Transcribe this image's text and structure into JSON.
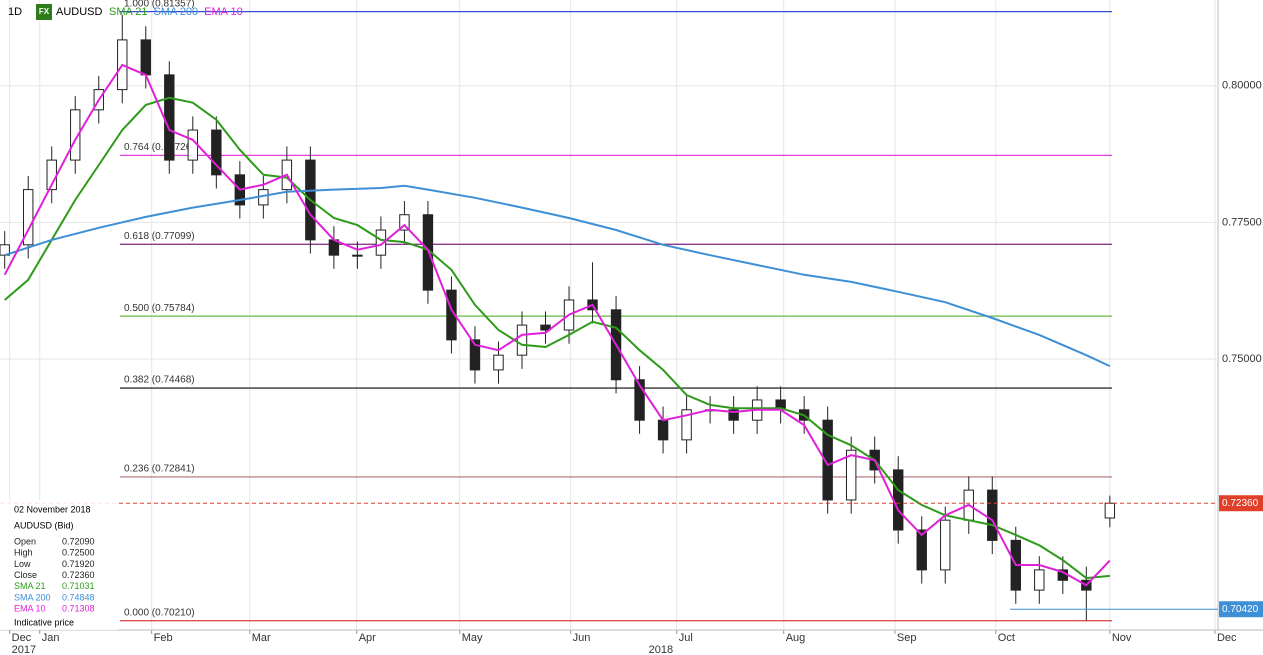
{
  "chart_data": {
    "type": "candlestick",
    "timeframe": "1D",
    "symbol": "AUDUSD",
    "symbol_badge": "FX",
    "categories": [
      null,
      null,
      null,
      null,
      null,
      null,
      null,
      null,
      null,
      null,
      null,
      null,
      null,
      null,
      null,
      null,
      null,
      null,
      null,
      null,
      null,
      null,
      null,
      null,
      null,
      null,
      null,
      null,
      null,
      null,
      null,
      null,
      null,
      null,
      null,
      null,
      null,
      null,
      null,
      null,
      null,
      null,
      null,
      null,
      null,
      null,
      null,
      null
    ],
    "open": [
      0.769,
      0.7709,
      0.781,
      0.7864,
      0.7956,
      0.7993,
      0.8084,
      0.802,
      0.7864,
      0.7919,
      0.7837,
      0.7782,
      0.781,
      0.7864,
      0.7718,
      0.769,
      0.769,
      0.7736,
      0.7764,
      0.7626,
      0.7535,
      0.748,
      0.7507,
      0.7562,
      0.7553,
      0.7608,
      0.759,
      0.7462,
      0.7388,
      0.7352,
      0.7407,
      0.7407,
      0.7388,
      0.7425,
      0.7407,
      0.7388,
      0.7242,
      0.7333,
      0.7297,
      0.7187,
      0.7114,
      0.7205,
      0.726,
      0.7168,
      0.7077,
      0.7114,
      0.7095,
      0.7209
    ],
    "high": [
      0.7734,
      0.7835,
      0.7889,
      0.7981,
      0.8018,
      0.813,
      0.8109,
      0.8045,
      0.7944,
      0.7944,
      0.7862,
      0.7835,
      0.7889,
      0.7889,
      0.7743,
      0.7715,
      0.7761,
      0.7789,
      0.7789,
      0.7651,
      0.756,
      0.7532,
      0.7587,
      0.7587,
      0.7633,
      0.7677,
      0.7615,
      0.7487,
      0.7413,
      0.7432,
      0.7432,
      0.7432,
      0.745,
      0.745,
      0.7432,
      0.7413,
      0.7358,
      0.7358,
      0.7322,
      0.7212,
      0.723,
      0.7285,
      0.7285,
      0.7193,
      0.7139,
      0.7139,
      0.712,
      0.725
    ],
    "low": [
      0.7665,
      0.7684,
      0.7785,
      0.7839,
      0.7931,
      0.7968,
      0.7995,
      0.7839,
      0.7839,
      0.7812,
      0.7757,
      0.7757,
      0.7785,
      0.7693,
      0.7665,
      0.7665,
      0.7665,
      0.7711,
      0.7601,
      0.751,
      0.7455,
      0.7455,
      0.7482,
      0.7528,
      0.7528,
      0.7565,
      0.7437,
      0.7363,
      0.7327,
      0.7327,
      0.7382,
      0.7363,
      0.7363,
      0.7382,
      0.7363,
      0.7217,
      0.7217,
      0.7272,
      0.7162,
      0.7089,
      0.7089,
      0.718,
      0.7143,
      0.7052,
      0.7052,
      0.707,
      0.7021,
      0.7192
    ],
    "close": [
      0.7709,
      0.781,
      0.7864,
      0.7956,
      0.7993,
      0.8084,
      0.802,
      0.7864,
      0.7919,
      0.7837,
      0.7782,
      0.781,
      0.7864,
      0.7718,
      0.769,
      0.769,
      0.7736,
      0.7764,
      0.7626,
      0.7535,
      0.748,
      0.7507,
      0.7562,
      0.7553,
      0.7608,
      0.759,
      0.7462,
      0.7388,
      0.7352,
      0.7407,
      0.7407,
      0.7388,
      0.7425,
      0.7407,
      0.7388,
      0.7242,
      0.7333,
      0.7297,
      0.7187,
      0.7114,
      0.7205,
      0.726,
      0.7168,
      0.7077,
      0.7114,
      0.7095,
      0.7077,
      0.7236
    ],
    "series": [
      {
        "name": "SMA 21",
        "color": "#2e9a1a",
        "x": [
          0,
          1,
          2,
          3,
          4,
          5,
          6,
          7,
          8,
          9,
          10,
          11,
          12,
          13,
          14,
          15,
          16,
          17,
          18,
          19,
          20,
          21,
          22,
          23,
          24,
          25,
          26,
          27,
          28,
          29,
          30,
          31,
          32,
          33,
          34,
          35,
          36,
          37,
          38,
          39,
          40,
          41,
          42,
          43,
          44,
          45,
          46,
          47
        ],
        "values": [
          0.7608,
          0.7645,
          0.7718,
          0.7791,
          0.7855,
          0.7919,
          0.7965,
          0.7978,
          0.7969,
          0.7938,
          0.7883,
          0.7837,
          0.7832,
          0.7791,
          0.7758,
          0.7745,
          0.7718,
          0.7714,
          0.77,
          0.7663,
          0.7599,
          0.7553,
          0.7526,
          0.7522,
          0.7544,
          0.7568,
          0.7557,
          0.7516,
          0.748,
          0.7434,
          0.7416,
          0.741,
          0.741,
          0.741,
          0.7397,
          0.7361,
          0.7342,
          0.7315,
          0.726,
          0.7233,
          0.7214,
          0.7205,
          0.7196,
          0.7178,
          0.7159,
          0.7132,
          0.7099,
          0.7103
        ]
      },
      {
        "name": "SMA 200",
        "color": "#3d8fd6",
        "x": [
          0,
          2,
          4,
          6,
          8,
          10,
          12,
          14,
          16,
          17,
          18,
          20,
          22,
          24,
          26,
          28,
          30,
          32,
          34,
          36,
          38,
          40,
          42,
          44,
          46,
          47
        ],
        "values": [
          0.769,
          0.7718,
          0.774,
          0.776,
          0.7777,
          0.7791,
          0.7806,
          0.781,
          0.7813,
          0.7817,
          0.781,
          0.7795,
          0.7777,
          0.7758,
          0.7736,
          0.7709,
          0.769,
          0.7672,
          0.7654,
          0.7641,
          0.7623,
          0.7604,
          0.7575,
          0.7544,
          0.7507,
          0.7487
        ]
      },
      {
        "name": "EMA 10",
        "color": "#e020d8",
        "x": [
          0,
          1,
          2,
          3,
          4,
          5,
          6,
          7,
          8,
          9,
          10,
          11,
          12,
          13,
          14,
          15,
          16,
          17,
          18,
          19,
          20,
          21,
          22,
          23,
          24,
          25,
          26,
          27,
          28,
          29,
          30,
          31,
          32,
          33,
          34,
          35,
          36,
          37,
          38,
          39,
          40,
          41,
          42,
          43,
          44,
          45,
          46,
          47
        ],
        "values": [
          0.7654,
          0.7736,
          0.7819,
          0.7901,
          0.7974,
          0.8038,
          0.802,
          0.7919,
          0.7901,
          0.7855,
          0.781,
          0.7819,
          0.7837,
          0.7764,
          0.7718,
          0.77,
          0.7709,
          0.7745,
          0.77,
          0.759,
          0.7526,
          0.7516,
          0.7544,
          0.7548,
          0.7581,
          0.7599,
          0.7526,
          0.7452,
          0.7388,
          0.7397,
          0.7407,
          0.7403,
          0.7407,
          0.7407,
          0.7379,
          0.7306,
          0.7324,
          0.7315,
          0.7223,
          0.7178,
          0.7214,
          0.7233,
          0.7205,
          0.7123,
          0.7123,
          0.711,
          0.7086,
          0.7131
        ]
      }
    ],
    "fib_levels": [
      {
        "label": "1.000 (0.81357)",
        "value": 0.81357,
        "color": "#3a4fd8"
      },
      {
        "label": "0.764 (0.78726)",
        "value": 0.78726,
        "color": "#e040e0"
      },
      {
        "label": "0.618 (0.77099)",
        "value": 0.77099,
        "color": "#8a3a8a"
      },
      {
        "label": "0.500 (0.75784)",
        "value": 0.75784,
        "color": "#66bb44"
      },
      {
        "label": "0.382 (0.74468)",
        "value": 0.74468,
        "color": "#333333"
      },
      {
        "label": "0.236 (0.72841)",
        "value": 0.72841,
        "color": "#c08a8a"
      },
      {
        "label": "0.000 (0.70210)",
        "value": 0.7021,
        "color": "#e05050"
      }
    ],
    "price_tags": [
      {
        "label": "0.72360",
        "value": 0.7236,
        "color": "#e0402a"
      },
      {
        "label": "0.70420",
        "value": 0.7042,
        "color": "#3d8fd6"
      }
    ],
    "xlim": [
      -0.2,
      51.6
    ],
    "ylim": [
      0.7004,
      0.8157
    ],
    "yticks": [
      {
        "value": 0.8,
        "label": "0.80000"
      },
      {
        "value": 0.775,
        "label": "0.77500"
      },
      {
        "value": 0.75,
        "label": "0.75000"
      }
    ],
    "xticks": [
      {
        "value": 0.21,
        "label": "Dec"
      },
      {
        "value": 1.49,
        "label": "Jan"
      },
      {
        "value": 6.25,
        "label": "Feb"
      },
      {
        "value": 10.42,
        "label": "Mar"
      },
      {
        "value": 14.97,
        "label": "Apr"
      },
      {
        "value": 19.35,
        "label": "May"
      },
      {
        "value": 24.07,
        "label": "Jun"
      },
      {
        "value": 28.58,
        "label": "Jul"
      },
      {
        "value": 33.13,
        "label": "Aug"
      },
      {
        "value": 37.86,
        "label": "Sep"
      },
      {
        "value": 42.15,
        "label": "Oct"
      },
      {
        "value": 47.0,
        "label": "Nov"
      },
      {
        "value": 51.47,
        "label": "Dec"
      }
    ],
    "year_labels": [
      {
        "value": 0.21,
        "label": "2017"
      },
      {
        "value": 27.3,
        "label": "2018"
      }
    ],
    "grid": true,
    "info_panel": {
      "date": "02 November 2018",
      "instrument": "AUDUSD (Bid)",
      "rows": [
        [
          "Open",
          "0.72090"
        ],
        [
          "High",
          "0.72500"
        ],
        [
          "Low",
          "0.71920"
        ],
        [
          "Close",
          "0.72360"
        ],
        [
          "SMA 21",
          "0.71031"
        ],
        [
          "SMA 200",
          "0.74848"
        ],
        [
          "EMA 10",
          "0.71308"
        ]
      ],
      "note": "Indicative price"
    }
  }
}
